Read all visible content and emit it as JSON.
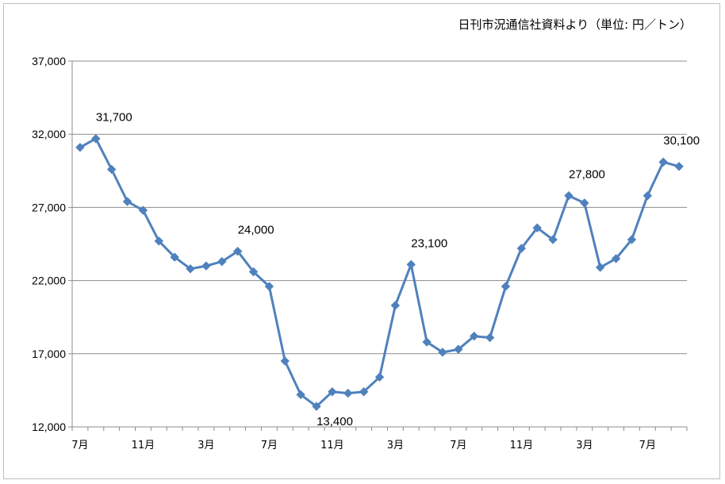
{
  "chart_data": {
    "type": "line",
    "title": "",
    "source_note": "日刊市況通信社資料より（単位: 円／トン）",
    "xlabel": "",
    "ylabel": "",
    "ylim": [
      12000,
      37000
    ],
    "y_ticks": [
      12000,
      17000,
      22000,
      27000,
      32000,
      37000
    ],
    "y_tick_labels": [
      "12,000",
      "17,000",
      "22,000",
      "27,000",
      "32,000",
      "37,000"
    ],
    "x_tick_labels": [
      {
        "index": 0,
        "label": "7月"
      },
      {
        "index": 4,
        "label": "11月"
      },
      {
        "index": 8,
        "label": "3月"
      },
      {
        "index": 12,
        "label": "7月"
      },
      {
        "index": 16,
        "label": "11月"
      },
      {
        "index": 20,
        "label": "3月"
      },
      {
        "index": 24,
        "label": "7月"
      },
      {
        "index": 28,
        "label": "11月"
      },
      {
        "index": 32,
        "label": "3月"
      },
      {
        "index": 36,
        "label": "7月"
      }
    ],
    "grid": true,
    "color": "#4f81bd",
    "series": [
      {
        "values": [
          31100,
          31700,
          29600,
          27400,
          26800,
          24700,
          23600,
          22800,
          23000,
          23300,
          24000,
          22600,
          21600,
          16500,
          14200,
          13400,
          14400,
          14300,
          14400,
          15400,
          20300,
          23100,
          17800,
          17100,
          17300,
          18200,
          18100,
          21600,
          24200,
          25600,
          24800,
          27800,
          27300,
          22900,
          23500,
          24800,
          27800,
          30100,
          29800
        ]
      }
    ],
    "annotations": [
      {
        "index": 1,
        "label": "31,700"
      },
      {
        "index": 10,
        "label": "24,000"
      },
      {
        "index": 15,
        "label": "13,400"
      },
      {
        "index": 21,
        "label": "23,100"
      },
      {
        "index": 31,
        "label": "27,800"
      },
      {
        "index": 37,
        "label": "30,100"
      }
    ]
  }
}
